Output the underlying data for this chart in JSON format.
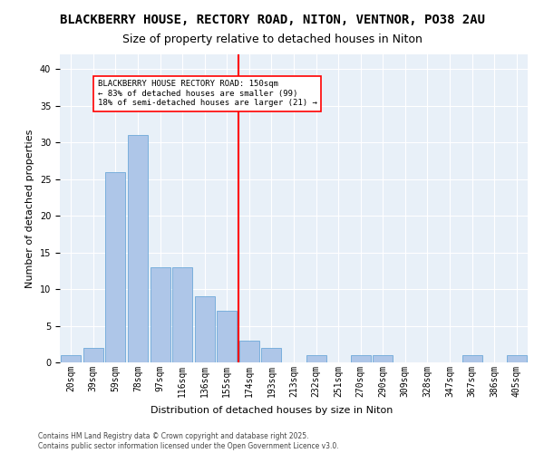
{
  "title1": "BLACKBERRY HOUSE, RECTORY ROAD, NITON, VENTNOR, PO38 2AU",
  "title2": "Size of property relative to detached houses in Niton",
  "xlabel": "Distribution of detached houses by size in Niton",
  "ylabel": "Number of detached properties",
  "bins": [
    "20sqm",
    "39sqm",
    "59sqm",
    "78sqm",
    "97sqm",
    "116sqm",
    "136sqm",
    "155sqm",
    "174sqm",
    "193sqm",
    "213sqm",
    "232sqm",
    "251sqm",
    "270sqm",
    "290sqm",
    "309sqm",
    "328sqm",
    "347sqm",
    "367sqm",
    "386sqm",
    "405sqm"
  ],
  "values": [
    1,
    2,
    26,
    31,
    13,
    13,
    9,
    7,
    3,
    2,
    0,
    1,
    0,
    1,
    1,
    0,
    0,
    0,
    1,
    0,
    1
  ],
  "bar_color": "#aec6e8",
  "bar_edge_color": "#5a9fd4",
  "ref_line_x": 7.5,
  "ref_line_label": "BLACKBERRY HOUSE RECTORY ROAD: 150sqm\n← 83% of detached houses are smaller (99)\n18% of semi-detached houses are larger (21) →",
  "ylim": [
    0,
    42
  ],
  "yticks": [
    0,
    5,
    10,
    15,
    20,
    25,
    30,
    35,
    40
  ],
  "background_color": "#e8f0f8",
  "footer": "Contains HM Land Registry data © Crown copyright and database right 2025.\nContains public sector information licensed under the Open Government Licence v3.0.",
  "title1_fontsize": 10,
  "title2_fontsize": 9,
  "axis_fontsize": 8,
  "tick_fontsize": 7
}
